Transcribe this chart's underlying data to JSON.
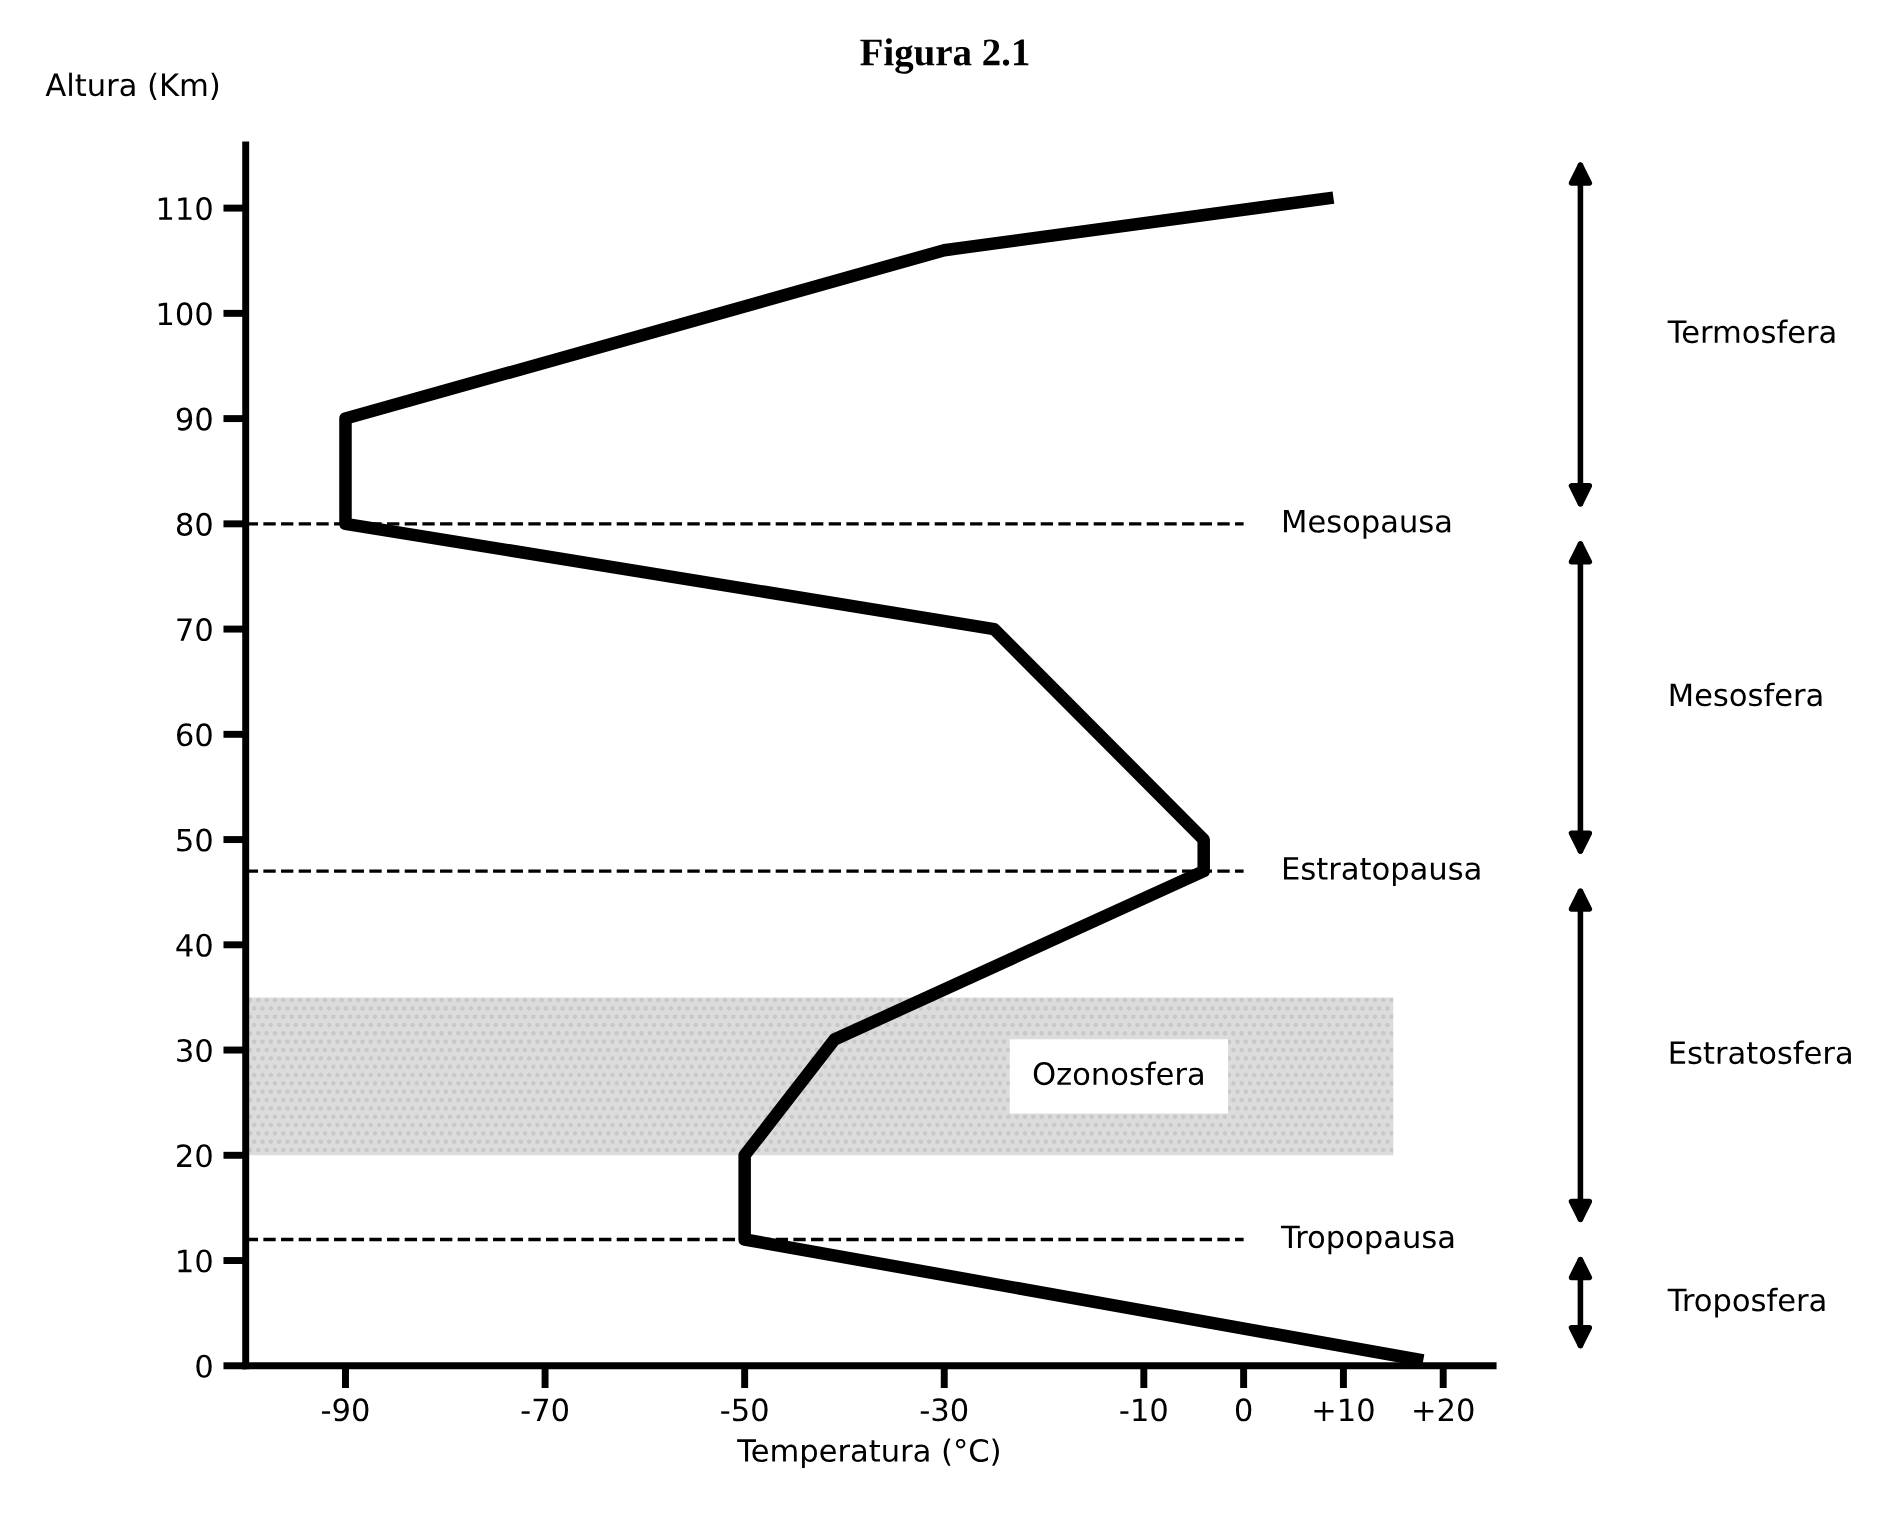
{
  "chart_data": {
    "type": "line",
    "title": "Figura 2.1",
    "xlabel": "Temperatura (°C)",
    "ylabel": "Altura (Km)",
    "x": [
      18,
      -50,
      -50,
      -41,
      -4,
      -4,
      -25,
      -90,
      -90,
      -30,
      9
    ],
    "series": [
      {
        "color": "#000000",
        "values": [
          0.5,
          12,
          20,
          31,
          47,
          50,
          70,
          80,
          90,
          106,
          111
        ]
      }
    ],
    "xlim": [
      -100,
      25
    ],
    "ylim": [
      0,
      116
    ],
    "xticks": [
      -90,
      -70,
      -50,
      -30,
      -10,
      0,
      {
        "value": 10,
        "label": "+10"
      },
      {
        "value": 20,
        "label": "+20"
      }
    ],
    "yticks": [
      0,
      10,
      20,
      30,
      40,
      50,
      60,
      70,
      80,
      90,
      100,
      110
    ],
    "ref_lines": [
      {
        "axis": "y",
        "value": 80,
        "label": "Mesopausa",
        "line_style": "dashed",
        "color": "#000000"
      },
      {
        "axis": "y",
        "value": 47,
        "label": "Estratopausa",
        "line_style": "dashed",
        "color": "#000000"
      },
      {
        "axis": "y",
        "value": 12,
        "label": "Tropopausa",
        "line_style": "dashed",
        "color": "#000000"
      }
    ],
    "bands": [
      {
        "axis": "y",
        "from": 20,
        "to": 35,
        "label": "Ozonosfera",
        "color": "#dcdcdc"
      }
    ],
    "annotations": [
      "Termosfera",
      "Mesosfera",
      "Estratosfera",
      "Troposfera"
    ],
    "grid": false,
    "legend": false,
    "marker": "none",
    "line_style": "solid"
  }
}
